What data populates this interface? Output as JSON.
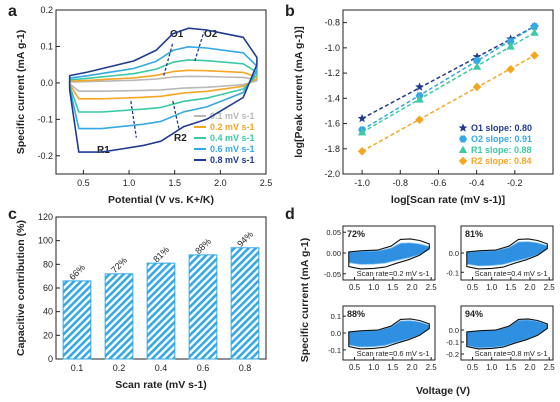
{
  "panels": {
    "a": {
      "label": "a",
      "peaks": [
        "O1",
        "O2",
        "R1",
        "R2"
      ]
    },
    "b": {
      "label": "b"
    },
    "c": {
      "label": "c"
    },
    "d": {
      "label": "d"
    }
  },
  "chart_data": [
    {
      "id": "a",
      "type": "line",
      "xlabel": "Potential (V vs. K+/K)",
      "ylabel": "Specific current (mA g-1)",
      "xlim": [
        0.2,
        2.5
      ],
      "ylim": [
        -0.25,
        0.2
      ],
      "xticks": [
        0.5,
        1.0,
        1.5,
        2.0,
        2.5
      ],
      "yticks": [
        -0.2,
        -0.1,
        0.0,
        0.1,
        0.2
      ],
      "legend_position": "bottom-right",
      "series": [
        {
          "name": "0.1 mV s-1",
          "color": "#b8b8b8",
          "scale": 0.12
        },
        {
          "name": "0.2 mV s-1",
          "color": "#f5a623",
          "scale": 0.23
        },
        {
          "name": "0.4 mV s-1",
          "color": "#3cc9a6",
          "scale": 0.42
        },
        {
          "name": "0.6 mV s-1",
          "color": "#35a8e6",
          "scale": 0.66
        },
        {
          "name": "0.8 mV s-1",
          "color": "#1f3b8f",
          "scale": 1.0
        }
      ]
    },
    {
      "id": "b",
      "type": "scatter",
      "xlabel": "log[Scan rate (mV s-1)]",
      "ylabel": "log[Peak current (mA g-1)]",
      "xlim": [
        -1.1,
        0.0
      ],
      "ylim": [
        -2.0,
        -0.7
      ],
      "xticks": [
        -1.0,
        -0.8,
        -0.6,
        -0.4,
        -0.2
      ],
      "yticks": [
        -0.8,
        -1.0,
        -1.2,
        -1.4,
        -1.6,
        -1.8,
        -2.0
      ],
      "x": [
        -1.0,
        -0.699,
        -0.398,
        -0.222,
        -0.097
      ],
      "legend_position": "bottom-right",
      "series": [
        {
          "name": "O1 slope: 0.80",
          "color": "#1f3b8f",
          "marker": "star",
          "values": [
            -1.56,
            -1.31,
            -1.07,
            -0.93,
            -0.83
          ]
        },
        {
          "name": "O2 slope: 0.91",
          "color": "#35a8e6",
          "marker": "hexagon",
          "values": [
            -1.65,
            -1.38,
            -1.1,
            -0.95,
            -0.83
          ]
        },
        {
          "name": "R1 slope: 0.88",
          "color": "#3cc9a6",
          "marker": "triangle",
          "values": [
            -1.67,
            -1.41,
            -1.15,
            -0.99,
            -0.88
          ]
        },
        {
          "name": "R2 slope: 0.84",
          "color": "#f5a623",
          "marker": "diamond",
          "values": [
            -1.82,
            -1.57,
            -1.31,
            -1.17,
            -1.06
          ]
        }
      ]
    },
    {
      "id": "c",
      "type": "bar",
      "xlabel": "Scan rate (mV s-1)",
      "ylabel": "Capacitive contribution (%)",
      "categories": [
        "0.1",
        "0.2",
        "0.4",
        "0.6",
        "0.8"
      ],
      "values": [
        66,
        72,
        81,
        88,
        94
      ],
      "data_labels": [
        "66%",
        "72%",
        "81%",
        "88%",
        "94%"
      ],
      "ylim": [
        0,
        120
      ],
      "yticks": [
        0,
        20,
        40,
        60,
        80,
        100,
        120
      ],
      "color": "#35a8e6"
    },
    {
      "id": "d",
      "type": "area",
      "xlabel": "Voltage (V)",
      "ylabel": "Specific current (mA g-1)",
      "xticks": [
        0.5,
        1.0,
        1.5,
        2.0,
        2.5
      ],
      "fill_color": "#2f8fe0",
      "subplots": [
        {
          "percent": "72%",
          "caption": "Scan rate=0.2 mV s-1",
          "fraction": 0.72,
          "yticks": [
            0.05,
            0.0,
            -0.05
          ],
          "ylim": [
            -0.065,
            0.065
          ]
        },
        {
          "percent": "81%",
          "caption": "Scan rate=0.4 mV s-1",
          "fraction": 0.81,
          "yticks": [
            0.0,
            -0.1
          ],
          "ylim": [
            -0.14,
            0.14
          ]
        },
        {
          "percent": "88%",
          "caption": "Scan rate=0.6 mV s-1",
          "fraction": 0.88,
          "yticks": [
            0.1,
            0.0,
            -0.1
          ],
          "ylim": [
            -0.16,
            0.16
          ]
        },
        {
          "percent": "94%",
          "caption": "Scan rate=0.8 mV s-1",
          "fraction": 0.94,
          "yticks": [
            0.0,
            -0.1,
            -0.2
          ],
          "ylim": [
            -0.25,
            0.2
          ]
        }
      ]
    }
  ]
}
